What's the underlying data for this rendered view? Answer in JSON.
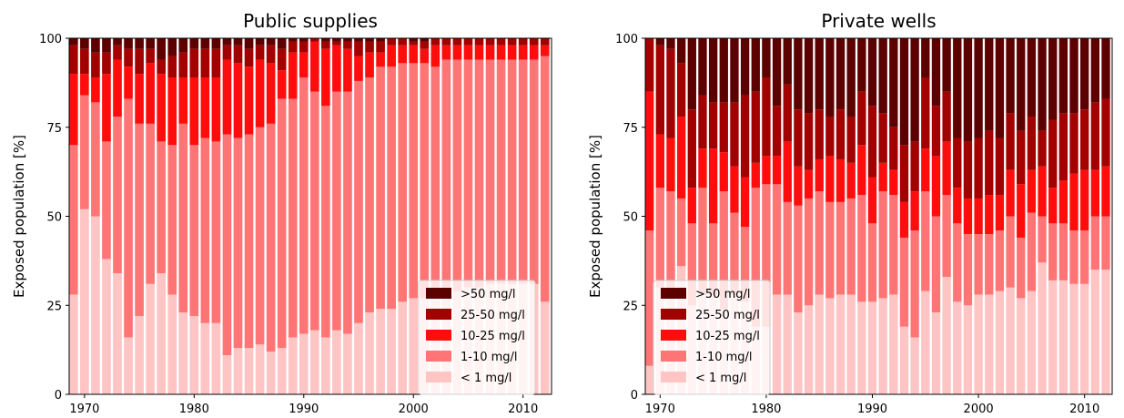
{
  "chart_data": [
    {
      "type": "bar",
      "stacked": true,
      "title": "Public supplies",
      "ylabel": "Exposed population [%]",
      "xlabel": "",
      "ylim": [
        0,
        100
      ],
      "xlim": [
        1968.6,
        2012.6
      ],
      "yticks": [
        "0",
        "25",
        "50",
        "75",
        "100"
      ],
      "xticks": [
        "1970",
        "1980",
        "1990",
        "2000",
        "2010"
      ],
      "legend_position": "lower-right",
      "legend": [
        {
          "label": ">50 mg/l",
          "color": "#5c0000"
        },
        {
          "label": "25-50 mg/l",
          "color": "#a30000"
        },
        {
          "label": "10-25 mg/l",
          "color": "#ff0d0d"
        },
        {
          "label": "1-10 mg/l",
          "color": "#ff7575"
        },
        {
          "label": "< 1 mg/l",
          "color": "#ffc4c4"
        }
      ],
      "x": [
        1969,
        1970,
        1971,
        1972,
        1973,
        1974,
        1975,
        1976,
        1977,
        1978,
        1979,
        1980,
        1981,
        1982,
        1983,
        1984,
        1985,
        1986,
        1987,
        1988,
        1989,
        1990,
        1991,
        1992,
        1993,
        1994,
        1995,
        1996,
        1997,
        1998,
        1999,
        2000,
        2001,
        2002,
        2003,
        2004,
        2005,
        2006,
        2007,
        2008,
        2009,
        2010,
        2011,
        2012
      ],
      "series": [
        {
          "name": "< 1 mg/l",
          "values": [
            28,
            52,
            50,
            38,
            34,
            16,
            22,
            31,
            34,
            28,
            23,
            22,
            20,
            20,
            11,
            13,
            13,
            14,
            12,
            13,
            16,
            17,
            18,
            16,
            18,
            17,
            20,
            23,
            24,
            24,
            26,
            27,
            27,
            28,
            29,
            29,
            30,
            30,
            31,
            31,
            31,
            31,
            31,
            26
          ]
        },
        {
          "name": "1-10 mg/l",
          "values": [
            42,
            32,
            32,
            33,
            44,
            67,
            54,
            45,
            37,
            42,
            53,
            48,
            52,
            51,
            62,
            59,
            60,
            61,
            64,
            70,
            67,
            72,
            67,
            65,
            67,
            68,
            68,
            66,
            68,
            68,
            67,
            66,
            66,
            64,
            65,
            65,
            64,
            64,
            63,
            63,
            63,
            63,
            63,
            69
          ]
        },
        {
          "name": "10-25 mg/l",
          "values": [
            20,
            6,
            7,
            19,
            16,
            9,
            14,
            17,
            19,
            19,
            13,
            19,
            17,
            18,
            21,
            21,
            19,
            19,
            17,
            8,
            13,
            7,
            14,
            16,
            13,
            12,
            7,
            7,
            4,
            6,
            5,
            5,
            4,
            6,
            4,
            4,
            4,
            4,
            4,
            4,
            4,
            4,
            4,
            3
          ]
        },
        {
          "name": "25-50 mg/l",
          "values": [
            8,
            7,
            7,
            6,
            4,
            5,
            7,
            4,
            4,
            6,
            7,
            8,
            8,
            8,
            4,
            5,
            5,
            4,
            5,
            6,
            3,
            3,
            1,
            2,
            1,
            2,
            4,
            3,
            3,
            2,
            2,
            1,
            2,
            2,
            2,
            2,
            2,
            2,
            2,
            2,
            2,
            2,
            2,
            2
          ]
        },
        {
          "name": ">50 mg/l",
          "values": [
            2,
            3,
            4,
            4,
            2,
            3,
            3,
            3,
            6,
            5,
            4,
            3,
            3,
            3,
            2,
            2,
            3,
            2,
            2,
            3,
            1,
            1,
            0,
            1,
            1,
            1,
            1,
            1,
            1,
            0,
            0,
            1,
            1,
            0,
            0,
            0,
            0,
            0,
            0,
            0,
            0,
            0,
            0,
            0
          ]
        }
      ]
    },
    {
      "type": "bar",
      "stacked": true,
      "title": "Private wells",
      "ylabel": "Exposed population [%]",
      "xlabel": "",
      "ylim": [
        0,
        100
      ],
      "xlim": [
        1968.6,
        2012.6
      ],
      "yticks": [
        "0",
        "25",
        "50",
        "75",
        "100"
      ],
      "xticks": [
        "1970",
        "1980",
        "1990",
        "2000",
        "2010"
      ],
      "legend_position": "lower-left",
      "legend": [
        {
          "label": ">50 mg/l",
          "color": "#5c0000"
        },
        {
          "label": "25-50 mg/l",
          "color": "#a30000"
        },
        {
          "label": "10-25 mg/l",
          "color": "#ff0d0d"
        },
        {
          "label": "1-10 mg/l",
          "color": "#ff7575"
        },
        {
          "label": "< 1 mg/l",
          "color": "#ffc4c4"
        }
      ],
      "x": [
        1969,
        1970,
        1971,
        1972,
        1973,
        1974,
        1975,
        1976,
        1977,
        1978,
        1979,
        1980,
        1981,
        1982,
        1983,
        1984,
        1985,
        1986,
        1987,
        1988,
        1989,
        1990,
        1991,
        1992,
        1993,
        1994,
        1995,
        1996,
        1997,
        1998,
        1999,
        2000,
        2001,
        2002,
        2003,
        2004,
        2005,
        2006,
        2007,
        2008,
        2009,
        2010,
        2011,
        2012
      ],
      "series": [
        {
          "name": "< 1 mg/l",
          "values": [
            8,
            30,
            30,
            36,
            25,
            28,
            28,
            24,
            28,
            26,
            19,
            19,
            28,
            28,
            23,
            25,
            28,
            27,
            28,
            28,
            26,
            26,
            27,
            28,
            19,
            16,
            29,
            23,
            33,
            26,
            25,
            28,
            28,
            29,
            30,
            27,
            29,
            37,
            32,
            32,
            31,
            31,
            35,
            35
          ]
        },
        {
          "name": "1-10 mg/l",
          "values": [
            38,
            28,
            27,
            19,
            23,
            30,
            20,
            33,
            23,
            21,
            39,
            40,
            31,
            26,
            30,
            30,
            29,
            27,
            26,
            27,
            30,
            22,
            30,
            28,
            25,
            30,
            28,
            27,
            23,
            22,
            20,
            17,
            17,
            17,
            20,
            17,
            22,
            13,
            16,
            16,
            15,
            15,
            15,
            15
          ]
        },
        {
          "name": "10-25 mg/l",
          "values": [
            39,
            15,
            15,
            23,
            10,
            11,
            21,
            11,
            13,
            14,
            7,
            8,
            8,
            17,
            11,
            8,
            9,
            13,
            12,
            10,
            14,
            13,
            8,
            7,
            10,
            11,
            12,
            17,
            15,
            10,
            10,
            10,
            11,
            10,
            13,
            15,
            12,
            14,
            10,
            12,
            16,
            17,
            13,
            14
          ]
        },
        {
          "name": "25-50 mg/l",
          "values": [
            15,
            25,
            25,
            15,
            22,
            15,
            13,
            14,
            18,
            23,
            20,
            22,
            14,
            16,
            16,
            16,
            14,
            11,
            14,
            13,
            15,
            20,
            14,
            12,
            16,
            14,
            20,
            14,
            14,
            14,
            16,
            17,
            18,
            16,
            16,
            15,
            15,
            10,
            19,
            19,
            17,
            17,
            19,
            19
          ]
        },
        {
          "name": ">50 mg/l",
          "values": [
            0,
            2,
            3,
            7,
            20,
            16,
            18,
            18,
            18,
            16,
            15,
            11,
            19,
            13,
            20,
            21,
            20,
            22,
            20,
            22,
            15,
            19,
            21,
            25,
            30,
            29,
            11,
            19,
            15,
            28,
            29,
            28,
            26,
            28,
            21,
            26,
            22,
            26,
            23,
            21,
            21,
            20,
            18,
            17
          ]
        }
      ]
    }
  ]
}
